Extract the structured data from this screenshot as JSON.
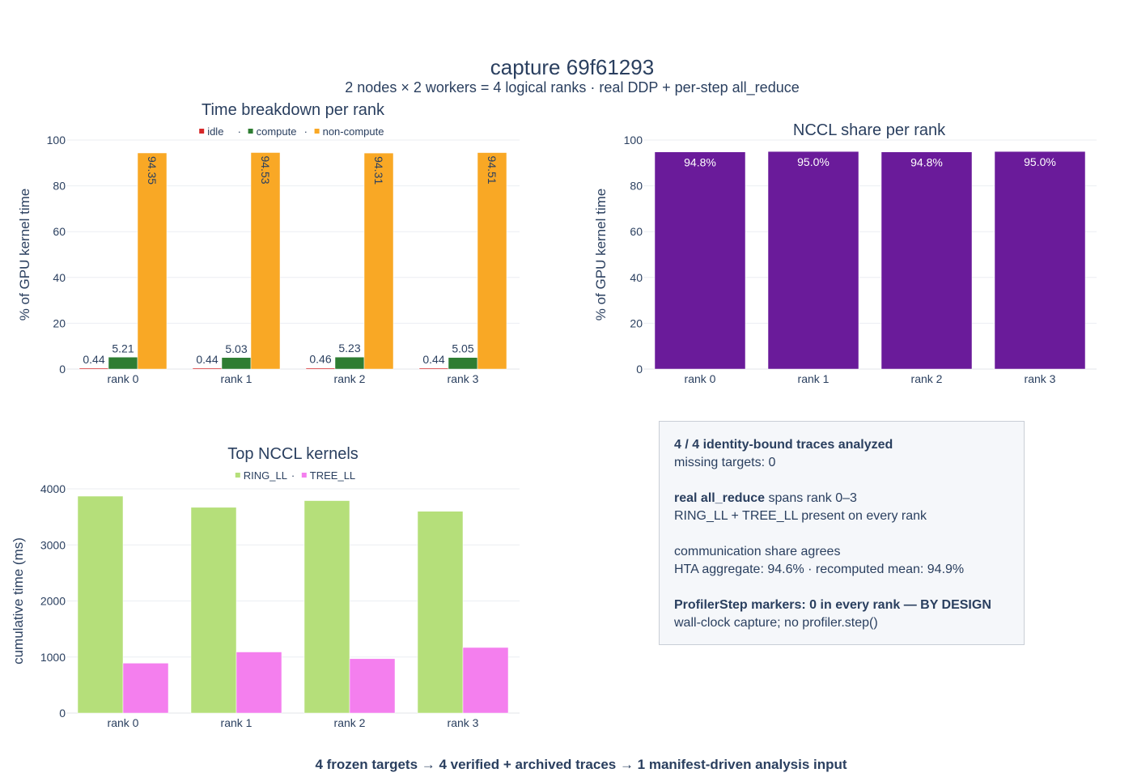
{
  "header": {
    "title": "capture 69f61293",
    "subtitle": "2 nodes × 2 workers = 4 logical ranks · real DDP + per-step all_reduce"
  },
  "footer": "4 frozen targets → 4 verified + archived traces → 1 manifest-driven analysis input",
  "chart_data": [
    {
      "type": "bar",
      "title": "Time breakdown per rank",
      "categories": [
        "rank 0",
        "rank 1",
        "rank 2",
        "rank 3"
      ],
      "series": [
        {
          "name": "idle",
          "color": "#d62728",
          "values": [
            0.44,
            0.44,
            0.46,
            0.44
          ],
          "labels": [
            "0.44",
            "0.44",
            "0.46",
            "0.44"
          ]
        },
        {
          "name": "compute",
          "color": "#2e7d32",
          "values": [
            5.21,
            5.03,
            5.23,
            5.05
          ],
          "labels": [
            "5.21",
            "5.03",
            "5.23",
            "5.05"
          ]
        },
        {
          "name": "non-compute",
          "color": "#f9a825",
          "values": [
            94.35,
            94.53,
            94.31,
            94.51
          ],
          "labels": [
            "94.35",
            "94.53",
            "94.31",
            "94.51"
          ]
        }
      ],
      "legend_separator": " · ",
      "ylabel": "% of GPU kernel time",
      "ylim": [
        0,
        100
      ],
      "yticks": [
        "0",
        "20",
        "40",
        "60",
        "80",
        "100"
      ],
      "legend": "top-center",
      "grid": true
    },
    {
      "type": "bar",
      "title": "NCCL share per rank",
      "categories": [
        "rank 0",
        "rank 1",
        "rank 2",
        "rank 3"
      ],
      "series": [
        {
          "color": "#6a1b9a",
          "values": [
            94.8,
            95.0,
            94.8,
            95.0
          ],
          "labels": [
            "94.8%",
            "95.0%",
            "94.8%",
            "95.0%"
          ]
        }
      ],
      "ylabel": "% of GPU kernel time",
      "ylim": [
        0,
        100
      ],
      "yticks": [
        "0",
        "20",
        "40",
        "60",
        "80",
        "100"
      ],
      "grid": true
    },
    {
      "type": "bar",
      "title": "Top NCCL kernels",
      "categories": [
        "rank 0",
        "rank 1",
        "rank 2",
        "rank 3"
      ],
      "series": [
        {
          "name": "RING_LL",
          "color": "#b5df7a",
          "values": [
            3870,
            3670,
            3790,
            3600
          ]
        },
        {
          "name": "TREE_LL",
          "color": "#f47fee",
          "values": [
            890,
            1090,
            970,
            1170
          ]
        }
      ],
      "legend_separator": " · ",
      "ylabel": "cumulative time (ms)",
      "ylim": [
        0,
        4000
      ],
      "yticks": [
        "0",
        "1000",
        "2000",
        "3000",
        "4000"
      ],
      "legend": "top-center",
      "grid": true
    }
  ],
  "info": {
    "line1_bold": "4 / 4 identity-bound traces analyzed",
    "line2": "missing targets: 0",
    "line3_bold": "real all_reduce",
    "line3_rest": " spans rank 0–3",
    "line4": "RING_LL + TREE_LL present on every rank",
    "line5": "communication share agrees",
    "line6": "HTA aggregate: 94.6% · recomputed mean: 94.9%",
    "line7_bold": "ProfilerStep markers: 0 in every rank — BY DESIGN",
    "line8": "wall-clock capture; no profiler.step()"
  }
}
